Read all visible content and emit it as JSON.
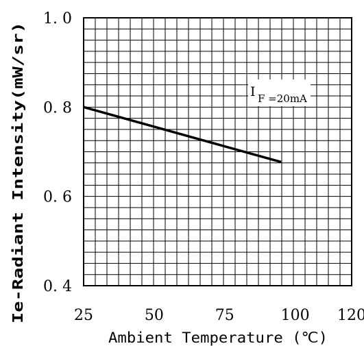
{
  "chart_data": {
    "type": "line",
    "title": "",
    "xlabel": "Ambient Temperature (℃)",
    "ylabel": "Ie-Radiant Intensity(mW/sr)",
    "xlim": [
      25,
      120
    ],
    "ylim": [
      0.4,
      1.0
    ],
    "x_ticks": [
      "25",
      "50",
      "75",
      "100",
      "120"
    ],
    "y_ticks": [
      "0. 4",
      "0. 6",
      "0. 8",
      "1. 0"
    ],
    "grid": true,
    "series": [
      {
        "x": [
          25,
          95
        ],
        "y": [
          0.8,
          0.677
        ]
      }
    ],
    "annotation": {
      "main": "I",
      "sub": "F =20mA"
    }
  }
}
